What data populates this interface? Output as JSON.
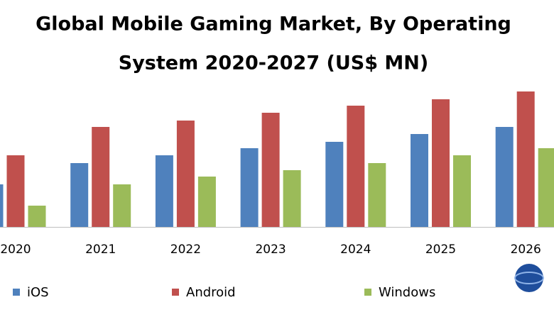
{
  "chart_data": {
    "type": "bar",
    "title_lines": [
      "Global Mobile Gaming Market, By Operating",
      "System 2020-2027 (US$ MN)"
    ],
    "categories": [
      "2020",
      "2021",
      "2022",
      "2023",
      "2024",
      "2025",
      "2026"
    ],
    "series": [
      {
        "name": "iOS",
        "color": "#4f81bd",
        "values": [
          60,
          90,
          101,
          111,
          120,
          131,
          141
        ]
      },
      {
        "name": "Android",
        "color": "#c0504d",
        "values": [
          101,
          141,
          150,
          161,
          171,
          180,
          191
        ]
      },
      {
        "name": "Windows",
        "color": "#9bbb59",
        "values": [
          30,
          60,
          71,
          80,
          90,
          101,
          111
        ]
      }
    ],
    "ylim": [
      0,
      200
    ]
  }
}
